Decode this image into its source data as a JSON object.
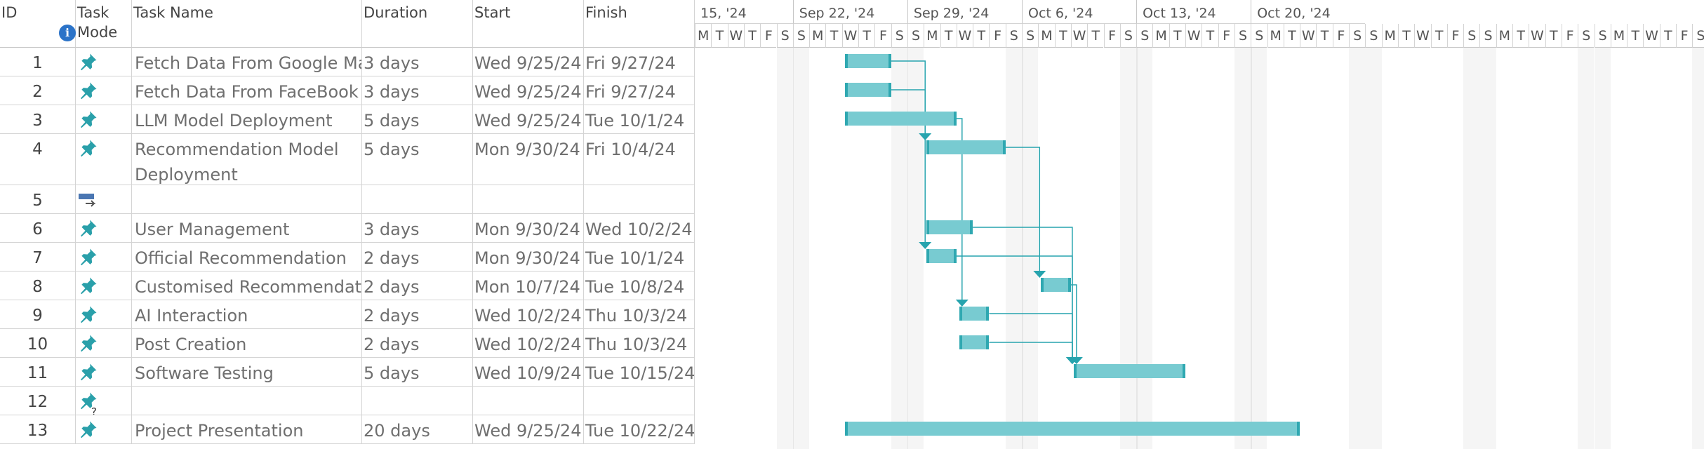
{
  "headers": {
    "id": "ID",
    "mode_line1": "Task",
    "mode_line2": "Mode",
    "info_icon": "i",
    "name": "Task Name",
    "duration": "Duration",
    "start": "Start",
    "finish": "Finish"
  },
  "tasks": [
    {
      "id": "1",
      "mode": "manual",
      "name": "Fetch Data From Google Ma",
      "duration": "3 days",
      "start": "Wed 9/25/24",
      "finish": "Fri 9/27/24"
    },
    {
      "id": "2",
      "mode": "manual",
      "name": "Fetch Data From FaceBook",
      "duration": "3 days",
      "start": "Wed 9/25/24",
      "finish": "Fri 9/27/24"
    },
    {
      "id": "3",
      "mode": "manual",
      "name": "LLM Model Deployment",
      "duration": "5 days",
      "start": "Wed 9/25/24",
      "finish": "Tue 10/1/24"
    },
    {
      "id": "4",
      "mode": "manual",
      "name": "Recommendation Model Deployment",
      "duration": "5 days",
      "start": "Mon 9/30/24",
      "finish": "Fri 10/4/24"
    },
    {
      "id": "5",
      "mode": "auto",
      "name": "",
      "duration": "",
      "start": "",
      "finish": ""
    },
    {
      "id": "6",
      "mode": "manual",
      "name": "User Management",
      "duration": "3 days",
      "start": "Mon 9/30/24",
      "finish": "Wed 10/2/24"
    },
    {
      "id": "7",
      "mode": "manual",
      "name": "Official Recommendation",
      "duration": "2 days",
      "start": "Mon 9/30/24",
      "finish": "Tue 10/1/24"
    },
    {
      "id": "8",
      "mode": "manual",
      "name": "Customised Recommendatio",
      "duration": "2 days",
      "start": "Mon 10/7/24",
      "finish": "Tue 10/8/24"
    },
    {
      "id": "9",
      "mode": "manual",
      "name": "AI Interaction",
      "duration": "2 days",
      "start": "Wed 10/2/24",
      "finish": "Thu 10/3/24"
    },
    {
      "id": "10",
      "mode": "manual",
      "name": "Post Creation",
      "duration": "2 days",
      "start": "Wed 10/2/24",
      "finish": "Thu 10/3/24"
    },
    {
      "id": "11",
      "mode": "manual",
      "name": "Software Testing",
      "duration": "5 days",
      "start": "Wed 10/9/24",
      "finish": "Tue 10/15/24"
    },
    {
      "id": "12",
      "mode": "manual-unknown",
      "name": "",
      "duration": "",
      "start": "",
      "finish": ""
    },
    {
      "id": "13",
      "mode": "manual",
      "name": "Project Presentation",
      "duration": "20 days",
      "start": "Wed 9/25/24",
      "finish": "Tue 10/22/24"
    }
  ],
  "timeline": {
    "weeks": [
      "15, '24",
      "Sep 22, '24",
      "Sep 29, '24",
      "Oct 6, '24",
      "Oct 13, '24",
      "Oct 20, '24"
    ],
    "day_letters": [
      "S",
      "M",
      "T",
      "W",
      "T",
      "F",
      "S"
    ],
    "first_day_letter_index": 1,
    "bars": [
      {
        "task": "1",
        "start_day": 9,
        "end_day": 12
      },
      {
        "task": "2",
        "start_day": 9,
        "end_day": 12
      },
      {
        "task": "3",
        "start_day": 9,
        "end_day": 16
      },
      {
        "task": "4",
        "start_day": 14,
        "end_day": 19
      },
      {
        "task": "6",
        "start_day": 14,
        "end_day": 17
      },
      {
        "task": "7",
        "start_day": 14,
        "end_day": 16
      },
      {
        "task": "8",
        "start_day": 21,
        "end_day": 23
      },
      {
        "task": "9",
        "start_day": 16,
        "end_day": 18
      },
      {
        "task": "10",
        "start_day": 16,
        "end_day": 18
      },
      {
        "task": "11",
        "start_day": 23,
        "end_day": 30
      },
      {
        "task": "13",
        "start_day": 9,
        "end_day": 37
      }
    ],
    "links": [
      {
        "from": "1",
        "to": "4"
      },
      {
        "from": "2",
        "to": "7"
      },
      {
        "from": "3",
        "to": "9"
      },
      {
        "from": "4",
        "to": "8"
      },
      {
        "from": "6",
        "to": "11"
      },
      {
        "from": "7",
        "to": "11"
      },
      {
        "from": "9",
        "to": "11"
      },
      {
        "from": "10",
        "to": "11"
      },
      {
        "from": "8",
        "to": "11"
      }
    ]
  },
  "colors": {
    "bar_fill": "#78cbd1",
    "bar_edge": "#2fa8b1",
    "link": "#27a4ae",
    "pin_icon": "#2aa0aa",
    "auto_icon": "#4a76b2"
  }
}
